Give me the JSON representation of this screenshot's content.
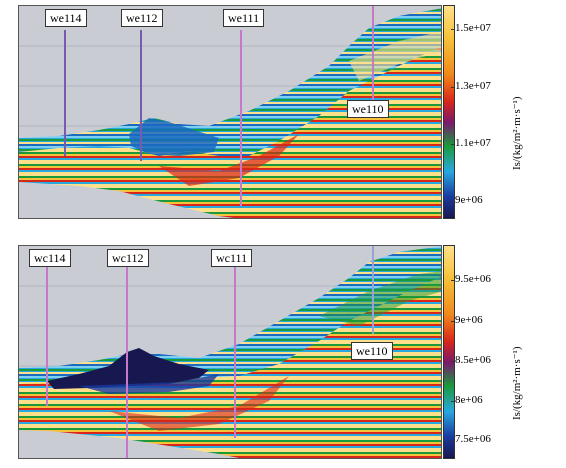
{
  "panels": [
    {
      "wells": [
        "we114",
        "we112",
        "we111",
        "we110"
      ],
      "colorbar": {
        "ticks": [
          "1.5e+07",
          "1.3e+07",
          "1.1e+07",
          "9e+06"
        ],
        "unit": "Is/(kg/m²·m·s⁻¹)"
      }
    },
    {
      "wells": [
        "wc114",
        "wc112",
        "wc111",
        "we110"
      ],
      "colorbar": {
        "ticks": [
          "9.5e+06",
          "9e+06",
          "8.5e+06",
          "8e+06",
          "7.5e+06"
        ],
        "unit": "Is/(kg/m²·m·s⁻¹)"
      }
    }
  ],
  "colors": {
    "background": "#c9ccd3",
    "colormap": [
      "#ffe08a",
      "#f6c23a",
      "#f08a1c",
      "#d8261a",
      "#7a1a6e",
      "#1a9a3a",
      "#28a8e0",
      "#1a3aa0",
      "#181850"
    ]
  }
}
